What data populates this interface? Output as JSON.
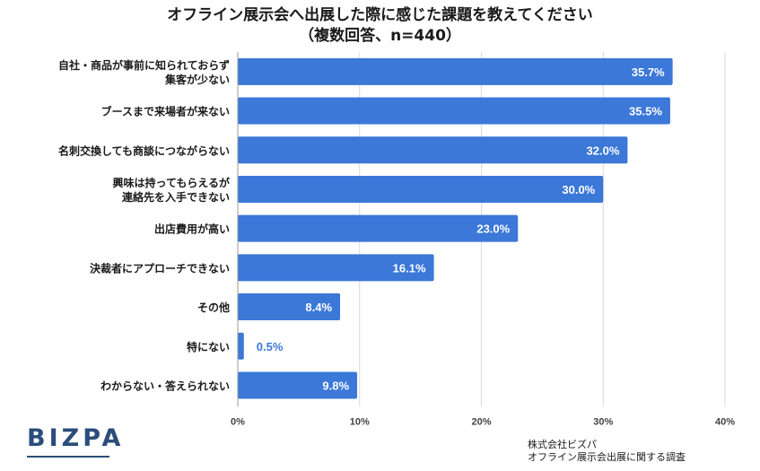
{
  "chart_data": {
    "type": "bar",
    "orientation": "horizontal",
    "title": "オフライン展示会へ出展した際に感じた課題を教えてください",
    "subtitle": "（複数回答、n=440）",
    "categories": [
      "自社・商品が事前に知られておらず集客が少ない",
      "ブースまで来場者が来ない",
      "名刺交換しても商談につながらない",
      "興味は持ってもらえるが連絡先を入手できない",
      "出店費用が高い",
      "決裁者にアプローチできない",
      "その他",
      "特にない",
      "わからない・答えられない"
    ],
    "category_lines": [
      [
        "自社・商品が事前に知られておらず",
        "集客が少ない"
      ],
      [
        "ブースまで来場者が来ない"
      ],
      [
        "名刺交換しても商談につながらない"
      ],
      [
        "興味は持ってもらえるが",
        "連絡先を入手できない"
      ],
      [
        "出店費用が高い"
      ],
      [
        "決裁者にアプローチできない"
      ],
      [
        "その他"
      ],
      [
        "特にない"
      ],
      [
        "わからない・答えられない"
      ]
    ],
    "values": [
      35.7,
      35.5,
      32.0,
      30.0,
      23.0,
      16.1,
      8.4,
      0.5,
      9.8
    ],
    "value_labels": [
      "35.7%",
      "35.5%",
      "32.0%",
      "30.0%",
      "23.0%",
      "16.1%",
      "8.4%",
      "0.5%",
      "9.8%"
    ],
    "x_ticks": [
      0,
      10,
      20,
      30,
      40
    ],
    "x_tick_labels": [
      "0%",
      "10%",
      "20%",
      "30%",
      "40%"
    ],
    "xlim": [
      0,
      40
    ],
    "grid": true,
    "legend": "none",
    "bar_color": "#3b78d8",
    "grid_color": "#d9d9d9"
  },
  "footer": {
    "logo": "BIZPA",
    "source_line1": "株式会社ビズパ",
    "source_line2": "オフライン展示会出展に関する調査"
  }
}
